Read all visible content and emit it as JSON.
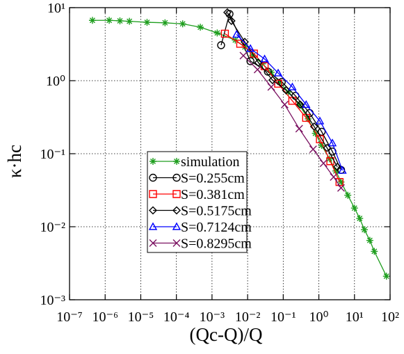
{
  "chart_data": {
    "type": "line",
    "xlabel": "(Qc-Q)/Q",
    "ylabel": "κ·hc",
    "xscale": "log",
    "yscale": "log",
    "xlim": [
      1e-07,
      100
    ],
    "ylim": [
      0.001,
      10
    ],
    "xticks": [
      {
        "value": 1e-07,
        "label": "10⁻⁷"
      },
      {
        "value": 1e-06,
        "label": "10⁻⁶"
      },
      {
        "value": 1e-05,
        "label": "10⁻⁵"
      },
      {
        "value": 0.0001,
        "label": "10⁻⁴"
      },
      {
        "value": 0.001,
        "label": "10⁻³"
      },
      {
        "value": 0.01,
        "label": "10⁻²"
      },
      {
        "value": 0.1,
        "label": "10⁻¹"
      },
      {
        "value": 1,
        "label": "10⁰"
      },
      {
        "value": 10,
        "label": "10¹"
      },
      {
        "value": 100,
        "label": "10²"
      }
    ],
    "yticks": [
      {
        "value": 0.001,
        "label": "10⁻³"
      },
      {
        "value": 0.01,
        "label": "10⁻²"
      },
      {
        "value": 0.1,
        "label": "10⁻¹"
      },
      {
        "value": 1,
        "label": "10⁰"
      },
      {
        "value": 10,
        "label": "10¹"
      }
    ],
    "grid": true,
    "legend": "center",
    "series": [
      {
        "name": "simulation",
        "color": "#1e9e1e",
        "marker": "star",
        "x": [
          4.4e-07,
          1.3e-06,
          2.6e-06,
          4.8e-06,
          1.5e-05,
          4.8e-05,
          0.00015,
          0.00047,
          0.0014,
          0.0045,
          0.0084,
          0.014,
          0.026,
          0.046,
          0.08,
          0.14,
          0.28,
          0.5,
          0.8,
          1.2,
          2.0,
          3.0,
          4.2,
          6.5,
          10,
          14,
          19,
          27,
          36,
          79
        ],
        "values": [
          6.7,
          6.7,
          6.6,
          6.5,
          6.3,
          6.2,
          6.0,
          5.4,
          4.5,
          3.6,
          2.9,
          2.2,
          1.7,
          1.3,
          0.95,
          0.7,
          0.47,
          0.3,
          0.19,
          0.13,
          0.085,
          0.058,
          0.041,
          0.027,
          0.018,
          0.013,
          0.0091,
          0.0065,
          0.0046,
          0.0021
        ]
      },
      {
        "name": "S=0.255cm",
        "color": "#000000",
        "marker": "circle",
        "x": [
          0.0018,
          0.0031,
          0.012,
          0.037,
          0.091,
          0.22,
          0.55,
          1.2,
          2.4,
          4.2
        ],
        "values": [
          3.06,
          8.2,
          1.85,
          1.33,
          0.96,
          0.62,
          0.36,
          0.2,
          0.107,
          0.06
        ]
      },
      {
        "name": "S=0.381cm",
        "color": "#ff0000",
        "marker": "square",
        "x": [
          0.0023,
          0.0062,
          0.015,
          0.03,
          0.072,
          0.18,
          0.44,
          1.07,
          2.1,
          3.8
        ],
        "values": [
          4.4,
          3.2,
          2.35,
          1.58,
          0.91,
          0.53,
          0.31,
          0.158,
          0.079,
          0.041
        ]
      },
      {
        "name": "S=0.5175cm",
        "color": "#000000",
        "marker": "diamond",
        "x": [
          0.0027,
          0.0035,
          0.0083,
          0.02,
          0.05,
          0.12,
          0.3,
          0.74,
          1.7,
          3.3
        ],
        "values": [
          8.6,
          6.6,
          3.4,
          1.77,
          1.02,
          0.74,
          0.47,
          0.235,
          0.12,
          0.066
        ]
      },
      {
        "name": "S=0.7124cm",
        "color": "#0000ff",
        "marker": "triangle",
        "x": [
          0.0049,
          0.012,
          0.03,
          0.072,
          0.18,
          0.44,
          1.07,
          2.4,
          4.6
        ],
        "values": [
          4.3,
          2.75,
          1.98,
          1.27,
          0.82,
          0.47,
          0.28,
          0.14,
          0.059
        ]
      },
      {
        "name": "S=0.8295cm",
        "color": "#7a1060",
        "marker": "x",
        "x": [
          0.0076,
          0.019,
          0.046,
          0.11,
          0.28,
          0.69,
          1.35,
          2.6,
          4.2
        ],
        "values": [
          2.2,
          1.42,
          0.82,
          0.47,
          0.22,
          0.115,
          0.074,
          0.048,
          0.034
        ]
      }
    ]
  }
}
